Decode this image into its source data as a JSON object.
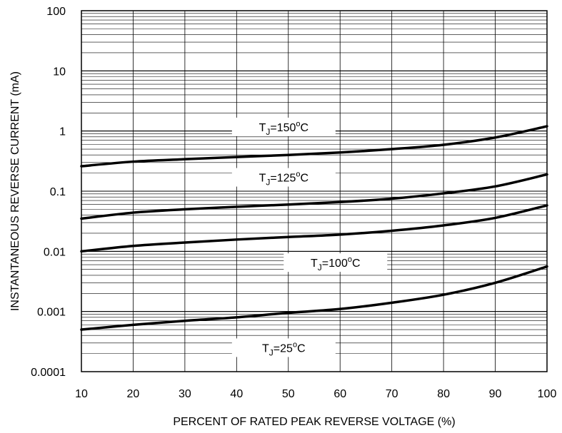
{
  "chart_data": {
    "type": "line",
    "xlabel": "PERCENT OF RATED PEAK REVERSE VOLTAGE (%)",
    "ylabel": "INSTANTANEOUS REVERSE CURRENT (mA)",
    "y_scale": "log",
    "xlim": [
      10,
      100
    ],
    "ylim": [
      0.0001,
      100
    ],
    "grid": true,
    "x_ticks": [
      "10",
      "20",
      "30",
      "40",
      "50",
      "60",
      "70",
      "80",
      "90",
      "100"
    ],
    "y_ticks": [
      "100",
      "10",
      "1",
      "0.1",
      "0.01",
      "0.001",
      "0.0001"
    ],
    "x": [
      10,
      20,
      30,
      40,
      50,
      60,
      70,
      80,
      90,
      100
    ],
    "series": [
      {
        "name": "T_J=150°C",
        "values": [
          0.26,
          0.31,
          0.34,
          0.37,
          0.4,
          0.44,
          0.5,
          0.59,
          0.78,
          1.2
        ]
      },
      {
        "name": "T_J=125°C",
        "values": [
          0.035,
          0.044,
          0.05,
          0.055,
          0.06,
          0.066,
          0.075,
          0.092,
          0.12,
          0.19
        ]
      },
      {
        "name": "T_J=100°C",
        "values": [
          0.01,
          0.0123,
          0.014,
          0.0157,
          0.0173,
          0.019,
          0.022,
          0.027,
          0.036,
          0.058
        ]
      },
      {
        "name": "T_J=25°C",
        "values": [
          0.0005,
          0.0006,
          0.0007,
          0.0008,
          0.00095,
          0.0011,
          0.0014,
          0.0019,
          0.003,
          0.0056
        ]
      }
    ],
    "series_labels": [
      {
        "t": "T",
        "sub": "J",
        "eq": "=150",
        "sup": "o",
        "unit": "C"
      },
      {
        "t": "T",
        "sub": "J",
        "eq": "=125",
        "sup": "o",
        "unit": "C"
      },
      {
        "t": "T",
        "sub": "J",
        "eq": "=100",
        "sup": "o",
        "unit": "C"
      },
      {
        "t": "T",
        "sub": "J",
        "eq": "=25",
        "sup": "o",
        "unit": "C"
      }
    ],
    "label_anchor_x": [
      40,
      40,
      50,
      40
    ],
    "label_anchor_y": [
      1.17,
      0.17,
      0.0065,
      0.00025
    ]
  }
}
